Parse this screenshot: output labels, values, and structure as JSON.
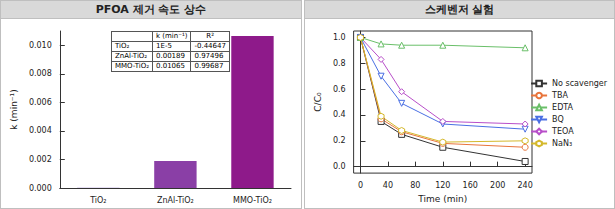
{
  "chart_data": [
    {
      "type": "bar",
      "title": "PFOA 제거 속도 상수",
      "y_label": "k (min⁻¹)",
      "categories": [
        "TiO₂",
        "ZnAl-TiO₂",
        "MMO-TiO₂"
      ],
      "values": [
        1e-05,
        0.00189,
        0.01065
      ],
      "colors": [
        "#9b7fd4",
        "#8a3fa6",
        "#8e1a8a"
      ],
      "ylim": [
        0,
        0.011
      ],
      "yticks": [
        {
          "value": 0,
          "label": "0.000"
        },
        {
          "value": 0.002,
          "label": "0.002"
        },
        {
          "value": 0.004,
          "label": "0.004"
        },
        {
          "value": 0.006,
          "label": "0.006"
        },
        {
          "value": 0.008,
          "label": "0.008"
        },
        {
          "value": 0.01,
          "label": "0.010"
        }
      ],
      "grid": false,
      "table": {
        "header": [
          "k (min⁻¹)",
          "R²"
        ],
        "rows": [
          [
            "TiO₂",
            "1E-5",
            "-0.44647"
          ],
          [
            "ZnAl-TiO₂",
            "0.00189",
            "0.97496"
          ],
          [
            "MMO-TiO₂",
            "0.01065",
            "0.99687"
          ]
        ]
      }
    },
    {
      "type": "line",
      "title": "스케벤저 실험",
      "x_label": "Time (min)",
      "y_label": "C/C₀",
      "x": [
        0,
        30,
        60,
        120,
        240
      ],
      "series": [
        {
          "name": "No scavenger",
          "color": "#333333",
          "marker": "square",
          "values": [
            1.0,
            0.35,
            0.25,
            0.15,
            0.04
          ]
        },
        {
          "name": "TBA",
          "color": "#e8743b",
          "marker": "circle",
          "values": [
            1.0,
            0.37,
            0.27,
            0.18,
            0.15
          ]
        },
        {
          "name": "EDTA",
          "color": "#6abf69",
          "marker": "triangle",
          "values": [
            1.0,
            0.95,
            0.94,
            0.94,
            0.92
          ]
        },
        {
          "name": "BQ",
          "color": "#4a6fe3",
          "marker": "triangle-down",
          "values": [
            1.0,
            0.7,
            0.49,
            0.33,
            0.29
          ]
        },
        {
          "name": "TEOA",
          "color": "#b84fc9",
          "marker": "diamond",
          "values": [
            1.0,
            0.83,
            0.58,
            0.35,
            0.33
          ]
        },
        {
          "name": "NaN₃",
          "color": "#d4b82b",
          "marker": "hexagon",
          "values": [
            1.0,
            0.39,
            0.28,
            0.19,
            0.2
          ]
        }
      ],
      "xlim": [
        -10,
        250
      ],
      "xticks": [
        0,
        40,
        80,
        120,
        160,
        200,
        240
      ],
      "ylim": [
        -0.05,
        1.05
      ],
      "yticks": [
        {
          "value": 0,
          "label": "0.0"
        },
        {
          "value": 0.2,
          "label": "0.2"
        },
        {
          "value": 0.4,
          "label": "0.4"
        },
        {
          "value": 0.6,
          "label": "0.6"
        },
        {
          "value": 0.8,
          "label": "0.8"
        },
        {
          "value": 1,
          "label": "1.0"
        }
      ],
      "legend": "right",
      "grid": false
    }
  ]
}
